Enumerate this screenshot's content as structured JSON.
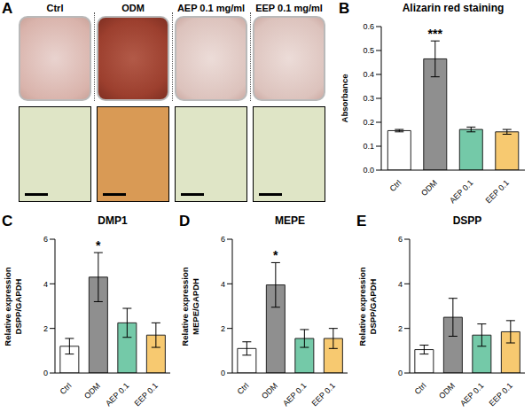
{
  "image_panel": {
    "panel": "A",
    "columns": [
      "Ctrl",
      "ODM",
      "AEP 0.1 mg/ml",
      "EEP 0.1 mg/ml"
    ]
  },
  "chart_data": [
    {
      "panel": "B",
      "type": "bar",
      "title": "Alizarin red staining",
      "y_label": [
        "Absorbance"
      ],
      "categories": [
        "Ctrl",
        "ODM",
        "AEP 0.1",
        "EEP 0.1"
      ],
      "values": [
        0.165,
        0.465,
        0.17,
        0.16
      ],
      "errors": [
        0.005,
        0.075,
        0.01,
        0.01
      ],
      "colors": [
        "#ffffff",
        "#8f8f8f",
        "#74c9a8",
        "#f7c970"
      ],
      "ylim": [
        0,
        0.6
      ],
      "yticks": [
        {
          "value": 0,
          "label": "0.0"
        },
        0.1,
        0.2,
        0.3,
        0.4,
        0.5,
        0.6
      ],
      "annotations": [
        {
          "category": "ODM",
          "text": "***"
        }
      ]
    },
    {
      "panel": "C",
      "type": "bar",
      "title": "DMP1",
      "y_label": [
        "Relative expression",
        "DSPP/GAPDH"
      ],
      "categories": [
        "Ctrl",
        "ODM",
        "AEP 0.1",
        "EEP 0.1"
      ],
      "values": [
        1.2,
        4.3,
        2.25,
        1.7
      ],
      "errors": [
        0.35,
        1.1,
        0.65,
        0.55
      ],
      "colors": [
        "#ffffff",
        "#8f8f8f",
        "#74c9a8",
        "#f7c970"
      ],
      "ylim": [
        0,
        6
      ],
      "yticks": [
        0,
        2,
        4,
        6
      ],
      "annotations": [
        {
          "category": "ODM",
          "text": "*"
        }
      ]
    },
    {
      "panel": "D",
      "type": "bar",
      "title": "MEPE",
      "y_label": [
        "Relative expression",
        "MEPE/GAPDH"
      ],
      "categories": [
        "Ctrl",
        "ODM",
        "AEP 0.1",
        "EEP 0.1"
      ],
      "values": [
        1.1,
        3.95,
        1.55,
        1.55
      ],
      "errors": [
        0.3,
        1.0,
        0.4,
        0.45
      ],
      "colors": [
        "#ffffff",
        "#8f8f8f",
        "#74c9a8",
        "#f7c970"
      ],
      "ylim": [
        0,
        6
      ],
      "yticks": [
        0,
        2,
        4,
        6
      ],
      "annotations": [
        {
          "category": "ODM",
          "text": "*"
        }
      ]
    },
    {
      "panel": "E",
      "type": "bar",
      "title": "DSPP",
      "y_label": [
        "Relative expression",
        "DSPP/GAPDH"
      ],
      "categories": [
        "Ctrl",
        "ODM",
        "AEP 0.1",
        "EEP 0.1"
      ],
      "values": [
        1.05,
        2.5,
        1.7,
        1.85
      ],
      "errors": [
        0.2,
        0.85,
        0.5,
        0.5
      ],
      "colors": [
        "#ffffff",
        "#8f8f8f",
        "#74c9a8",
        "#f7c970"
      ],
      "ylim": [
        0,
        6
      ],
      "yticks": [
        0,
        2,
        4,
        6
      ]
    }
  ]
}
